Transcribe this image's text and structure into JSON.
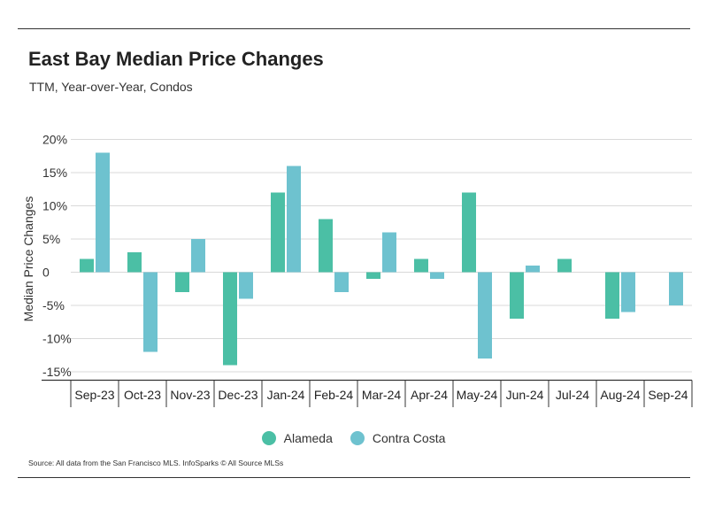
{
  "header": {
    "title": "East Bay Median Price Changes",
    "subtitle": "TTM, Year-over-Year, Condos"
  },
  "footer": {
    "source": "Source:  All data from the San Francisco MLS. InfoSparks © All Source MLSs"
  },
  "colors": {
    "alameda": "#4bbfa5",
    "contra_costa": "#6ec2cf",
    "grid": "#d9d9d9",
    "axis": "#333333"
  },
  "chart_data": {
    "type": "bar",
    "title": "East Bay Median Price Changes",
    "subtitle": "TTM, Year-over-Year, Condos",
    "xlabel": "",
    "ylabel": "Median Price Changes",
    "ylim": [
      -16,
      20
    ],
    "yticks": [
      20,
      15,
      10,
      5,
      0,
      -5,
      -10,
      -15
    ],
    "ytick_labels": [
      "20%",
      "15%",
      "10%",
      "5%",
      "0",
      "-5%",
      "-10%",
      "-15%"
    ],
    "grid": true,
    "legend_position": "bottom-center",
    "categories": [
      "Sep-23",
      "Oct-23",
      "Nov-23",
      "Dec-23",
      "Jan-24",
      "Feb-24",
      "Mar-24",
      "Apr-24",
      "May-24",
      "Jun-24",
      "Jul-24",
      "Aug-24",
      "Sep-24"
    ],
    "series": [
      {
        "name": "Alameda",
        "color": "#4bbfa5",
        "values": [
          2,
          3,
          -3,
          -14,
          12,
          8,
          -1,
          2,
          12,
          -7,
          2,
          -7,
          0
        ]
      },
      {
        "name": "Contra Costa",
        "color": "#6ec2cf",
        "values": [
          18,
          -12,
          5,
          -4,
          16,
          -3,
          6,
          -1,
          -13,
          1,
          0,
          -6,
          -5
        ]
      }
    ]
  }
}
